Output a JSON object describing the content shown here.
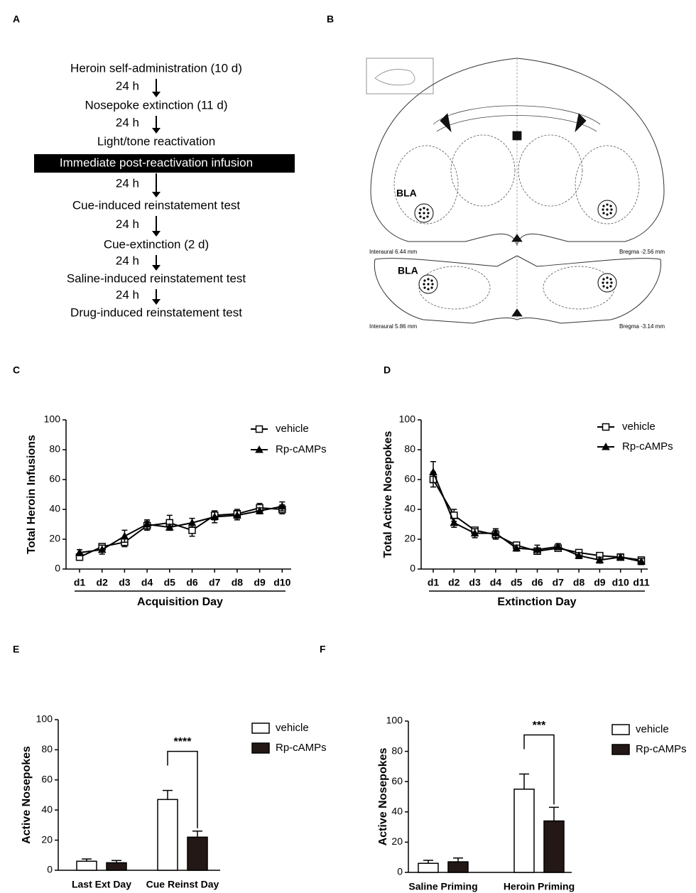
{
  "panel_labels": [
    "A",
    "B",
    "C",
    "D",
    "E",
    "F"
  ],
  "flowchart": {
    "steps": [
      {
        "label": "Heroin self-administration (10 d)"
      },
      {
        "label": "Nosepoke extinction (11 d)",
        "interval": "24 h"
      },
      {
        "label": "Light/tone reactivation",
        "interval": "24 h"
      },
      {
        "label": "Immediate post-reactivation  infusion",
        "highlight": true
      },
      {
        "label": "Cue-induced reinstatement test",
        "interval": "24 h"
      },
      {
        "label": "Cue-extinction (2 d)",
        "interval": "24 h"
      },
      {
        "label": "Saline-induced reinstatement test",
        "interval": "24 h"
      },
      {
        "label": "Drug-induced reinstatement test",
        "interval": "24 h"
      }
    ]
  },
  "atlas": {
    "region_labels": [
      "BLA",
      "BLA"
    ],
    "sections": [
      {
        "interaural": "Interaural 6.44 mm",
        "bregma": "Bregma -2.56 mm"
      },
      {
        "interaural": "Interaural 5.86 mm",
        "bregma": "Bregma -3.14 mm"
      }
    ]
  },
  "chart_data": [
    {
      "type": "line",
      "xlabel": "Acquisition Day",
      "ylabel": "Total Heroin Infusions",
      "categories": [
        "d1",
        "d2",
        "d3",
        "d4",
        "d5",
        "d6",
        "d7",
        "d8",
        "d9",
        "d10"
      ],
      "ylim": [
        0,
        100
      ],
      "yticks": [
        0,
        20,
        40,
        60,
        80,
        100
      ],
      "series": [
        {
          "name": "vehicle",
          "color": "#000000",
          "marker": "square",
          "values": [
            8,
            15,
            18,
            29,
            31,
            26,
            36,
            37,
            41,
            40
          ],
          "errors": [
            2,
            2,
            3,
            3,
            5,
            4,
            3,
            3,
            3,
            3
          ]
        },
        {
          "name": "Rp-cAMPs",
          "color": "#000000",
          "marker": "triangle",
          "values": [
            11,
            13,
            22,
            30,
            28,
            31,
            35,
            36,
            39,
            42
          ],
          "errors": [
            2,
            3,
            4,
            3,
            2,
            3,
            4,
            3,
            2,
            3
          ]
        }
      ]
    },
    {
      "type": "line",
      "xlabel": "Extinction Day",
      "ylabel": "Total Active Nosepokes",
      "categories": [
        "d1",
        "d2",
        "d3",
        "d4",
        "d5",
        "d6",
        "d7",
        "d8",
        "d9",
        "d10",
        "d11"
      ],
      "ylim": [
        0,
        100
      ],
      "yticks": [
        0,
        20,
        40,
        60,
        80,
        100
      ],
      "series": [
        {
          "name": "vehicle",
          "color": "#000000",
          "marker": "square",
          "values": [
            60,
            36,
            26,
            23,
            16,
            12,
            14,
            11,
            9,
            8,
            6
          ],
          "errors": [
            5,
            4,
            2,
            3,
            2,
            2,
            2,
            2,
            2,
            2,
            2
          ]
        },
        {
          "name": "Rp-cAMPs",
          "color": "#000000",
          "marker": "triangle",
          "values": [
            65,
            31,
            24,
            24,
            14,
            13,
            15,
            9,
            6,
            8,
            5
          ],
          "errors": [
            7,
            3,
            3,
            3,
            2,
            3,
            2,
            2,
            2,
            2,
            2
          ]
        }
      ]
    },
    {
      "type": "bar",
      "ylabel": "Active Nosepokes",
      "categories": [
        "Last Ext Day",
        "Cue Reinst Day"
      ],
      "ylim": [
        0,
        100
      ],
      "yticks": [
        0,
        20,
        40,
        60,
        80,
        100
      ],
      "annotations": [
        {
          "text": "****",
          "category": "Cue Reinst Day"
        }
      ],
      "series": [
        {
          "name": "vehicle",
          "color": "#ffffff",
          "values": [
            6,
            47
          ],
          "errors": [
            1.5,
            6
          ]
        },
        {
          "name": "Rp-cAMPs",
          "color": "#231815",
          "values": [
            5,
            22
          ],
          "errors": [
            1.5,
            4
          ]
        }
      ]
    },
    {
      "type": "bar",
      "ylabel": "Active Nosepokes",
      "categories": [
        "Saline Priming",
        "Heroin Priming"
      ],
      "ylim": [
        0,
        100
      ],
      "yticks": [
        0,
        20,
        40,
        60,
        80,
        100
      ],
      "annotations": [
        {
          "text": "***",
          "category": "Heroin Priming"
        }
      ],
      "series": [
        {
          "name": "vehicle",
          "color": "#ffffff",
          "values": [
            6,
            55
          ],
          "errors": [
            2,
            10
          ]
        },
        {
          "name": "Rp-cAMPs",
          "color": "#231815",
          "values": [
            7,
            34
          ],
          "errors": [
            2.5,
            9
          ]
        }
      ]
    }
  ]
}
